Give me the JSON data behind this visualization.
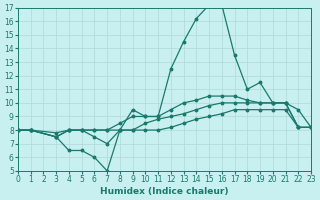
{
  "xlabel": "Humidex (Indice chaleur)",
  "ylabel": "",
  "xlim": [
    0,
    23
  ],
  "ylim": [
    5,
    17
  ],
  "yticks": [
    5,
    6,
    7,
    8,
    9,
    10,
    11,
    12,
    13,
    14,
    15,
    16,
    17
  ],
  "xticks": [
    0,
    1,
    2,
    3,
    4,
    5,
    6,
    7,
    8,
    9,
    10,
    11,
    12,
    13,
    14,
    15,
    16,
    17,
    18,
    19,
    20,
    21,
    22,
    23
  ],
  "bg_color": "#c8f0f0",
  "grid_color": "#b0d8d8",
  "line_color": "#1a7a6a",
  "series": [
    [
      0,
      8
    ],
    [
      1,
      8
    ],
    [
      3,
      7.5
    ],
    [
      4,
      6.5
    ],
    [
      5,
      6.5
    ],
    [
      6,
      6
    ],
    [
      7,
      5
    ],
    [
      8,
      8
    ],
    [
      9,
      9.5
    ],
    [
      10,
      9
    ],
    [
      11,
      9
    ],
    [
      12,
      12.5
    ],
    [
      13,
      14.5
    ],
    [
      14,
      16.2
    ],
    [
      15,
      17.2
    ],
    [
      16,
      17.2
    ],
    [
      17,
      13.5
    ],
    [
      18,
      11
    ],
    [
      19,
      11.5
    ],
    [
      20,
      10
    ],
    [
      21,
      10
    ],
    [
      22,
      9.5
    ],
    [
      23,
      8.2
    ]
  ],
  "series2": [
    [
      0,
      8
    ],
    [
      1,
      8
    ],
    [
      3,
      7.5
    ],
    [
      4,
      8
    ],
    [
      5,
      8
    ],
    [
      6,
      8
    ],
    [
      7,
      8
    ],
    [
      8,
      8
    ],
    [
      9,
      8
    ],
    [
      10,
      8.5
    ],
    [
      11,
      8.8
    ],
    [
      12,
      9
    ],
    [
      13,
      9.2
    ],
    [
      14,
      9.5
    ],
    [
      15,
      9.8
    ],
    [
      16,
      10
    ],
    [
      17,
      10
    ],
    [
      18,
      10
    ],
    [
      19,
      10
    ],
    [
      20,
      10
    ],
    [
      21,
      10
    ],
    [
      22,
      8.2
    ],
    [
      23,
      8.2
    ]
  ],
  "series3": [
    [
      0,
      8
    ],
    [
      1,
      8
    ],
    [
      3,
      7.8
    ],
    [
      4,
      8
    ],
    [
      5,
      8
    ],
    [
      6,
      8
    ],
    [
      7,
      8
    ],
    [
      8,
      8.5
    ],
    [
      9,
      9
    ],
    [
      10,
      9
    ],
    [
      11,
      9
    ],
    [
      12,
      9.5
    ],
    [
      13,
      10
    ],
    [
      14,
      10.2
    ],
    [
      15,
      10.5
    ],
    [
      16,
      10.5
    ],
    [
      17,
      10.5
    ],
    [
      18,
      10.2
    ],
    [
      19,
      10
    ],
    [
      20,
      10
    ],
    [
      21,
      10
    ],
    [
      22,
      8.2
    ],
    [
      23,
      8.2
    ]
  ],
  "series4": [
    [
      0,
      8
    ],
    [
      1,
      8
    ],
    [
      3,
      7.5
    ],
    [
      4,
      8
    ],
    [
      5,
      8
    ],
    [
      6,
      7.5
    ],
    [
      7,
      7
    ],
    [
      8,
      8
    ],
    [
      9,
      8
    ],
    [
      10,
      8
    ],
    [
      11,
      8
    ],
    [
      12,
      8.2
    ],
    [
      13,
      8.5
    ],
    [
      14,
      8.8
    ],
    [
      15,
      9
    ],
    [
      16,
      9.2
    ],
    [
      17,
      9.5
    ],
    [
      18,
      9.5
    ],
    [
      19,
      9.5
    ],
    [
      20,
      9.5
    ],
    [
      21,
      9.5
    ],
    [
      22,
      8.2
    ],
    [
      23,
      8.2
    ]
  ]
}
